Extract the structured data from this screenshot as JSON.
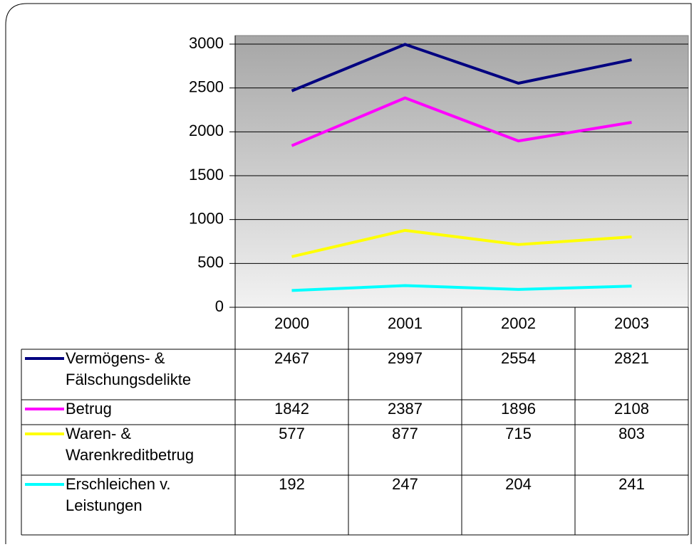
{
  "chart_data": {
    "type": "line",
    "categories": [
      "2000",
      "2001",
      "2002",
      "2003"
    ],
    "series": [
      {
        "name": "Vermögens- & Fälschungsdelikte",
        "color": "#000080",
        "values": [
          2467,
          2997,
          2554,
          2821
        ]
      },
      {
        "name": "Betrug",
        "color": "#ff00ff",
        "values": [
          1842,
          2387,
          1896,
          2108
        ]
      },
      {
        "name": "Waren- & Warenkreditbetrug",
        "color": "#ffff00",
        "values": [
          577,
          877,
          715,
          803
        ]
      },
      {
        "name": "Erschleichen v. Leistungen",
        "color": "#00ffff",
        "values": [
          192,
          247,
          204,
          241
        ]
      }
    ],
    "ylim": [
      0,
      3000
    ],
    "yticks": [
      0,
      500,
      1000,
      1500,
      2000,
      2500,
      3000
    ],
    "grid": true
  }
}
